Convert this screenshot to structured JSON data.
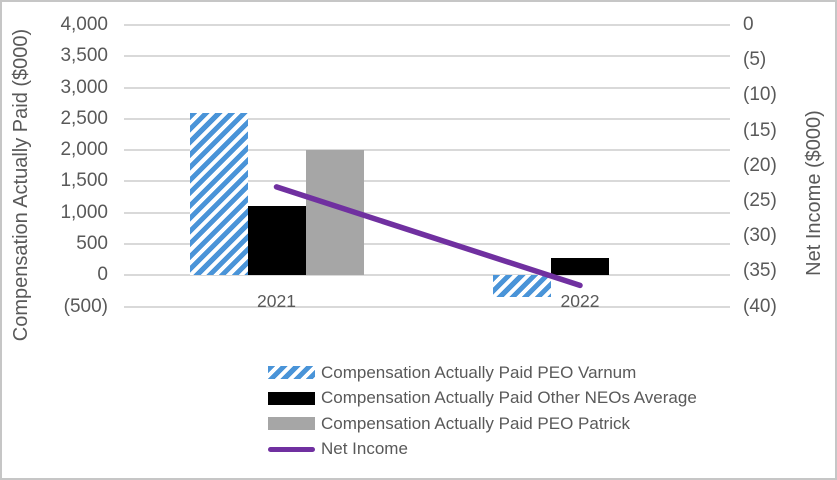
{
  "colors": {
    "background": "#FFFFFF",
    "border": "#C6C6C6",
    "gridline": "#D9D9D9",
    "text": "#595959",
    "varnum_blue": "#4A94D8",
    "neo_black": "#000000",
    "patrick_gray": "#A6A6A6",
    "net_income_purple": "#7030A0"
  },
  "chart_data": {
    "type": "bar",
    "subtype": "bar-line-combo",
    "grid": true,
    "legend_position": "bottom",
    "categories": [
      "2021",
      "2022"
    ],
    "series": [
      {
        "name": "Compensation Actually Paid PEO Varnum",
        "kind": "bar",
        "style": "hatched",
        "color": "#4A94D8",
        "axis": "left",
        "values": [
          2600,
          -350
        ]
      },
      {
        "name": "Compensation Actually Paid Other NEOs Average",
        "kind": "bar",
        "style": "solid",
        "color": "#000000",
        "axis": "left",
        "values": [
          1100,
          280
        ]
      },
      {
        "name": "Compensation Actually Paid PEO Patrick",
        "kind": "bar",
        "style": "solid",
        "color": "#A6A6A6",
        "axis": "left",
        "values": [
          2000,
          0
        ]
      },
      {
        "name": "Net Income",
        "kind": "line",
        "style": "line",
        "color": "#7030A0",
        "axis": "right",
        "values": [
          -23,
          -37
        ]
      }
    ],
    "left_axis": {
      "title": "Compensation Actually Paid ($000)",
      "min": -500,
      "max": 4000,
      "step": 500,
      "ticks": [
        "4,000",
        "3,500",
        "3,000",
        "2,500",
        "2,000",
        "1,500",
        "1,000",
        "500",
        "0",
        "(500)"
      ]
    },
    "right_axis": {
      "title": "Net Income ($000)",
      "min": -40,
      "max": 0,
      "step": 5,
      "ticks": [
        "0",
        "(5)",
        "(10)",
        "(15)",
        "(20)",
        "(25)",
        "(30)",
        "(35)",
        "(40)"
      ]
    }
  }
}
